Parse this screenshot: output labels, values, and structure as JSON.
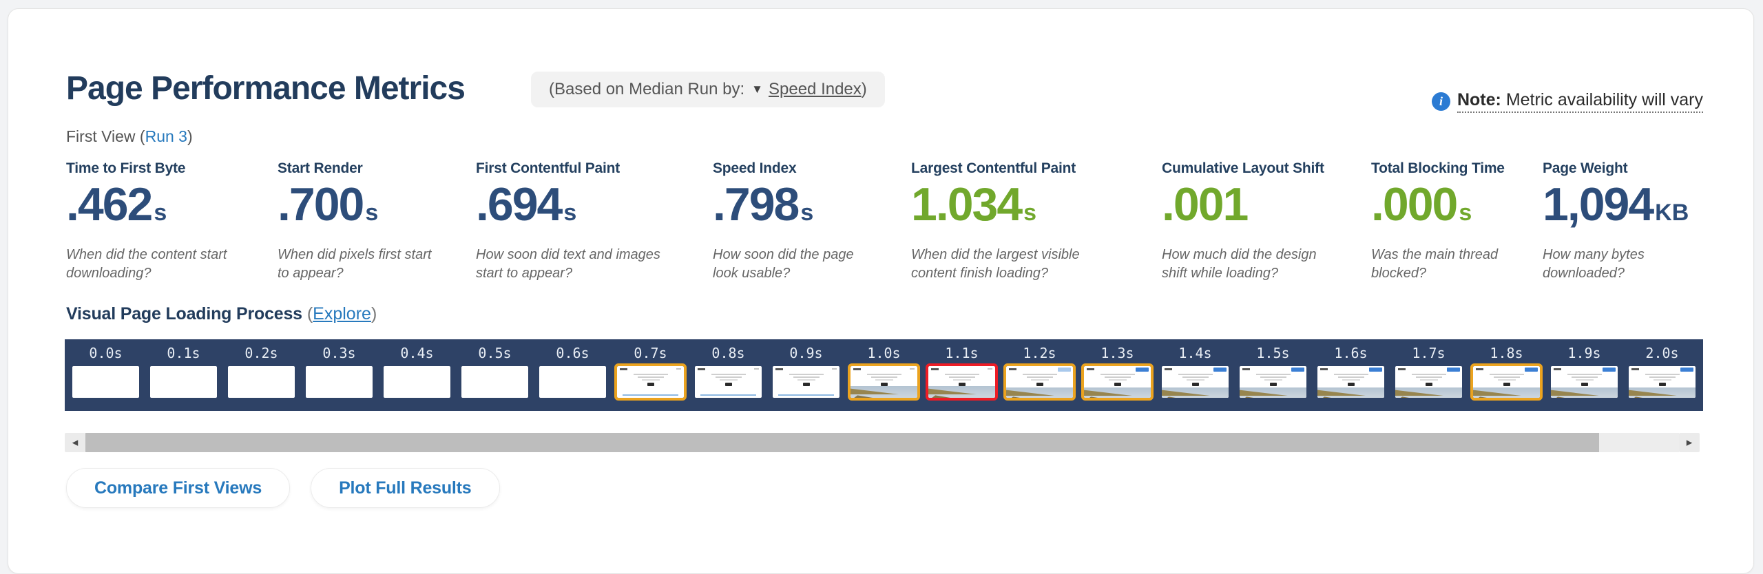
{
  "header": {
    "title": "Page Performance Metrics",
    "median_pill": {
      "prefix": "(Based on Median Run by:",
      "dropdown_icon": "▼",
      "link": "Speed Index",
      "suffix": ")"
    },
    "note": {
      "icon_glyph": "i",
      "label": "Note:",
      "text": " Metric availability will vary"
    },
    "view_label": {
      "prefix": "First View (",
      "link": "Run 3",
      "suffix": ")"
    }
  },
  "colors": {
    "navy_heading": "#223c5c",
    "metric_navy": "#2d4d7a",
    "metric_green": "#71a82c",
    "link_blue": "#2779bd",
    "filmstrip_bg": "#2e4266",
    "highlight_orange": "#eba31f",
    "highlight_red": "#ee1c25"
  },
  "metrics": {
    "items": [
      {
        "label": "Time to First Byte",
        "value": ".462",
        "suffix": "s",
        "color": "navy",
        "description": "When did the content start downloading?"
      },
      {
        "label": "Start Render",
        "value": ".700",
        "suffix": "s",
        "color": "navy",
        "description": "When did pixels first start to appear?"
      },
      {
        "label": "First Contentful Paint",
        "value": ".694",
        "suffix": "s",
        "color": "navy",
        "description": "How soon did text and images start to appear?"
      },
      {
        "label": "Speed Index",
        "value": ".798",
        "suffix": "s",
        "color": "navy",
        "description": "How soon did the page look usable?"
      },
      {
        "label": "Largest Contentful Paint",
        "value": "1.034",
        "suffix": "s",
        "color": "green",
        "description": "When did the largest visible content finish loading?"
      },
      {
        "label": "Cumulative Layout Shift",
        "value": ".001",
        "suffix": "",
        "color": "green",
        "description": "How much did the design shift while loading?"
      },
      {
        "label": "Total Blocking Time",
        "value": ".000",
        "suffix": "s",
        "color": "green",
        "description": "Was the main thread blocked?"
      },
      {
        "label": "Page Weight",
        "value": "1,094",
        "suffix": "KB",
        "color": "navy",
        "description": "How many bytes downloaded?"
      }
    ]
  },
  "filmstrip": {
    "heading": "Visual Page Loading Process",
    "explore": {
      "open_paren": " (",
      "link": "Explore",
      "close_paren": ")"
    },
    "frames": [
      {
        "time": "0.0s",
        "variant": "blank",
        "border": "none"
      },
      {
        "time": "0.1s",
        "variant": "blank",
        "border": "none"
      },
      {
        "time": "0.2s",
        "variant": "blank",
        "border": "none"
      },
      {
        "time": "0.3s",
        "variant": "blank",
        "border": "none"
      },
      {
        "time": "0.4s",
        "variant": "blank",
        "border": "none"
      },
      {
        "time": "0.5s",
        "variant": "blank",
        "border": "none"
      },
      {
        "time": "0.6s",
        "variant": "blank",
        "border": "none"
      },
      {
        "time": "0.7s",
        "variant": "early",
        "border": "orange"
      },
      {
        "time": "0.8s",
        "variant": "early",
        "border": "none"
      },
      {
        "time": "0.9s",
        "variant": "early",
        "border": "none"
      },
      {
        "time": "1.0s",
        "variant": "hero",
        "border": "orange"
      },
      {
        "time": "1.1s",
        "variant": "hero",
        "border": "red"
      },
      {
        "time": "1.2s",
        "variant": "full-light",
        "border": "orange"
      },
      {
        "time": "1.3s",
        "variant": "full",
        "border": "orange"
      },
      {
        "time": "1.4s",
        "variant": "full",
        "border": "none"
      },
      {
        "time": "1.5s",
        "variant": "full",
        "border": "none"
      },
      {
        "time": "1.6s",
        "variant": "full",
        "border": "none"
      },
      {
        "time": "1.7s",
        "variant": "full",
        "border": "none"
      },
      {
        "time": "1.8s",
        "variant": "full",
        "border": "orange"
      },
      {
        "time": "1.9s",
        "variant": "full",
        "border": "none"
      },
      {
        "time": "2.0s",
        "variant": "full",
        "border": "none"
      }
    ]
  },
  "scrollbar": {
    "left_arrow": "◂",
    "right_arrow": "▸",
    "thumb_percent": 95
  },
  "actions": [
    {
      "label": "Compare First Views"
    },
    {
      "label": "Plot Full Results"
    }
  ]
}
